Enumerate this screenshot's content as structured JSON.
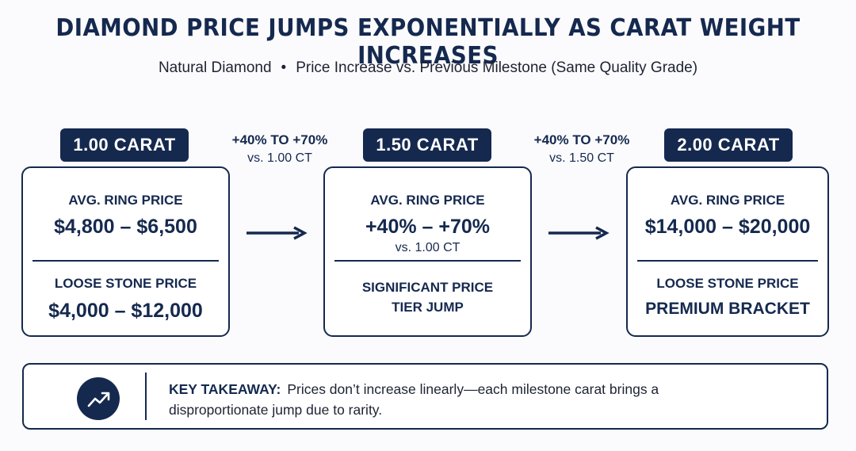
{
  "title": "DIAMOND PRICE JUMPS EXPONENTIALLY AS CARAT WEIGHT INCREASES",
  "subtitle": {
    "left": "Natural Diamond",
    "separator": "•",
    "right": "Price Increase vs. Previous Milestone (Same Quality Grade)"
  },
  "milestones": [
    {
      "pill": "1.00 CARAT",
      "top_label": "AVG. RING PRICE",
      "top_value": "$4,800 – $6,500",
      "bottom_label": "LOOSE STONE PRICE",
      "bottom_value": "$4,000 – $12,000"
    },
    {
      "pill": "1.50 CARAT",
      "top_label": "AVG. RING PRICE",
      "top_value": "+40% – +70%",
      "top_note": "vs. 1.00 CT",
      "bottom_line1": "SIGNIFICANT PRICE",
      "bottom_line2": "TIER JUMP"
    },
    {
      "pill": "2.00 CARAT",
      "top_label": "AVG. RING PRICE",
      "top_value": "$14,000 – $20,000",
      "bottom_label": "LOOSE STONE PRICE",
      "bottom_value": "PREMIUM BRACKET"
    }
  ],
  "jumps": [
    {
      "pct": "+40% TO +70%",
      "vs": "vs. 1.00 CT"
    },
    {
      "pct": "+40% TO +70%",
      "vs": "vs. 1.50 CT"
    }
  ],
  "takeaway": {
    "icon": "trending-up-icon",
    "label": "KEY TAKEAWAY:",
    "line1": "Prices don’t increase linearly—each milestone carat brings a",
    "line2": "disproportionate jump due to rarity."
  },
  "colors": {
    "navy": "#15294f",
    "background": "#fbfbfd"
  }
}
